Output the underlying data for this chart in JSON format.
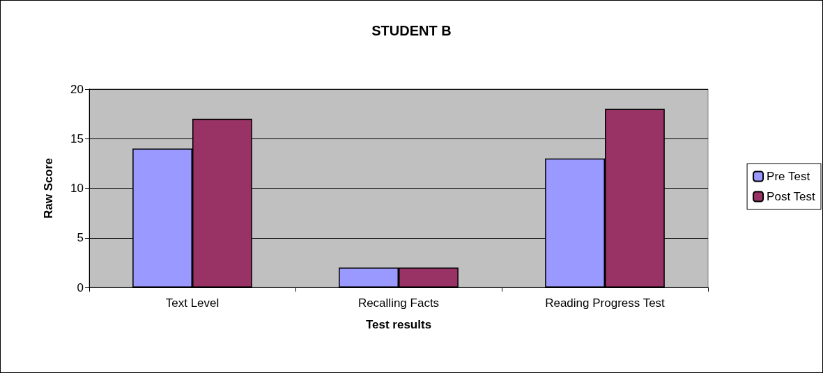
{
  "chart_data": {
    "type": "bar",
    "title": "STUDENT B",
    "xlabel": "Test results",
    "ylabel": "Raw Score",
    "categories": [
      "Text Level",
      "Recalling Facts",
      "Reading Progress Test"
    ],
    "series": [
      {
        "name": "Pre Test",
        "color": "#9999ff",
        "values": [
          14,
          2,
          13
        ]
      },
      {
        "name": "Post Test",
        "color": "#993366",
        "values": [
          17,
          2,
          18
        ]
      }
    ],
    "ylim": [
      0,
      20
    ],
    "yticks": [
      0,
      5,
      10,
      15,
      20
    ],
    "grid": "y",
    "legend": "right"
  }
}
